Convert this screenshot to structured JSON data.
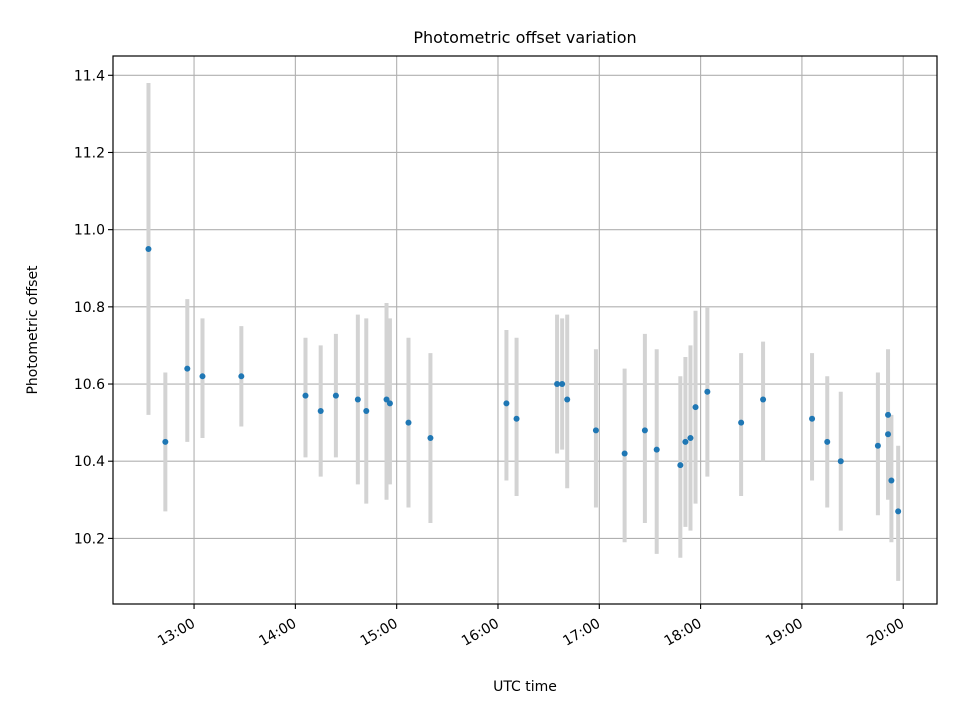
{
  "chart_data": {
    "type": "scatter",
    "title": "Photometric offset variation",
    "xlabel": "UTC time",
    "ylabel": "Photometric offset",
    "grid": true,
    "xlim": [
      "12:12",
      "20:20"
    ],
    "ylim": [
      10.03,
      11.45
    ],
    "xticks": [
      "13:00",
      "14:00",
      "15:00",
      "16:00",
      "17:00",
      "18:00",
      "19:00",
      "20:00"
    ],
    "yticks": [
      "10.2",
      "10.4",
      "10.6",
      "10.8",
      "11.0",
      "11.2",
      "11.4"
    ],
    "colors": {
      "marker": "#1f77b4",
      "errorbar": "#d3d3d3",
      "grid": "#b0b0b0"
    },
    "points": [
      {
        "time": "12:33",
        "value": 10.95,
        "err_low": 10.52,
        "err_high": 11.38
      },
      {
        "time": "12:43",
        "value": 10.45,
        "err_low": 10.27,
        "err_high": 10.63
      },
      {
        "time": "12:56",
        "value": 10.64,
        "err_low": 10.45,
        "err_high": 10.82
      },
      {
        "time": "13:05",
        "value": 10.62,
        "err_low": 10.46,
        "err_high": 10.77
      },
      {
        "time": "13:28",
        "value": 10.62,
        "err_low": 10.49,
        "err_high": 10.75
      },
      {
        "time": "14:06",
        "value": 10.57,
        "err_low": 10.41,
        "err_high": 10.72
      },
      {
        "time": "14:15",
        "value": 10.53,
        "err_low": 10.36,
        "err_high": 10.7
      },
      {
        "time": "14:24",
        "value": 10.57,
        "err_low": 10.41,
        "err_high": 10.73
      },
      {
        "time": "14:37",
        "value": 10.56,
        "err_low": 10.34,
        "err_high": 10.78
      },
      {
        "time": "14:42",
        "value": 10.53,
        "err_low": 10.29,
        "err_high": 10.77
      },
      {
        "time": "14:54",
        "value": 10.56,
        "err_low": 10.3,
        "err_high": 10.81
      },
      {
        "time": "14:56",
        "value": 10.55,
        "err_low": 10.34,
        "err_high": 10.77
      },
      {
        "time": "15:07",
        "value": 10.5,
        "err_low": 10.28,
        "err_high": 10.72
      },
      {
        "time": "15:20",
        "value": 10.46,
        "err_low": 10.24,
        "err_high": 10.68
      },
      {
        "time": "16:05",
        "value": 10.55,
        "err_low": 10.35,
        "err_high": 10.74
      },
      {
        "time": "16:11",
        "value": 10.51,
        "err_low": 10.31,
        "err_high": 10.72
      },
      {
        "time": "16:35",
        "value": 10.6,
        "err_low": 10.42,
        "err_high": 10.78
      },
      {
        "time": "16:38",
        "value": 10.6,
        "err_low": 10.43,
        "err_high": 10.77
      },
      {
        "time": "16:41",
        "value": 10.56,
        "err_low": 10.33,
        "err_high": 10.78
      },
      {
        "time": "16:58",
        "value": 10.48,
        "err_low": 10.28,
        "err_high": 10.69
      },
      {
        "time": "17:15",
        "value": 10.42,
        "err_low": 10.19,
        "err_high": 10.64
      },
      {
        "time": "17:27",
        "value": 10.48,
        "err_low": 10.24,
        "err_high": 10.73
      },
      {
        "time": "17:34",
        "value": 10.43,
        "err_low": 10.16,
        "err_high": 10.69
      },
      {
        "time": "17:48",
        "value": 10.39,
        "err_low": 10.15,
        "err_high": 10.62
      },
      {
        "time": "17:51",
        "value": 10.45,
        "err_low": 10.23,
        "err_high": 10.67
      },
      {
        "time": "17:54",
        "value": 10.46,
        "err_low": 10.22,
        "err_high": 10.7
      },
      {
        "time": "17:57",
        "value": 10.54,
        "err_low": 10.29,
        "err_high": 10.79
      },
      {
        "time": "18:04",
        "value": 10.58,
        "err_low": 10.36,
        "err_high": 10.8
      },
      {
        "time": "18:24",
        "value": 10.5,
        "err_low": 10.31,
        "err_high": 10.68
      },
      {
        "time": "18:37",
        "value": 10.56,
        "err_low": 10.4,
        "err_high": 10.71
      },
      {
        "time": "19:06",
        "value": 10.51,
        "err_low": 10.35,
        "err_high": 10.68
      },
      {
        "time": "19:15",
        "value": 10.45,
        "err_low": 10.28,
        "err_high": 10.62
      },
      {
        "time": "19:23",
        "value": 10.4,
        "err_low": 10.22,
        "err_high": 10.58
      },
      {
        "time": "19:45",
        "value": 10.44,
        "err_low": 10.26,
        "err_high": 10.63
      },
      {
        "time": "19:51",
        "value": 10.52,
        "err_low": 10.35,
        "err_high": 10.69
      },
      {
        "time": "19:51",
        "value": 10.47,
        "err_low": 10.3,
        "err_high": 10.64
      },
      {
        "time": "19:53",
        "value": 10.35,
        "err_low": 10.19,
        "err_high": 10.52
      },
      {
        "time": "19:57",
        "value": 10.27,
        "err_low": 10.09,
        "err_high": 10.44
      }
    ]
  }
}
